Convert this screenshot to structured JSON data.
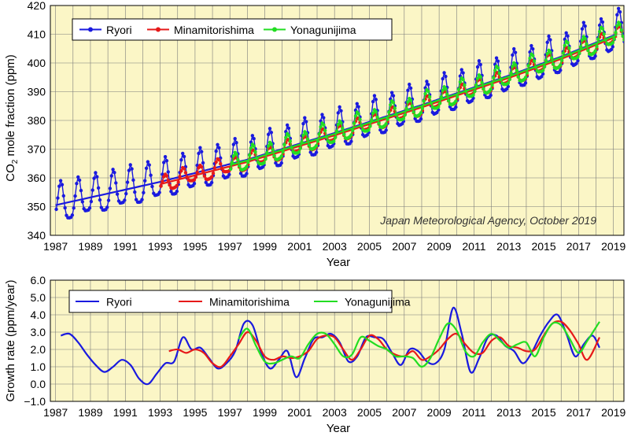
{
  "chart_data": [
    {
      "type": "line",
      "ylabel_main": "CO",
      "ylabel_sub": "2",
      "ylabel_rest": " mole fraction (ppm)",
      "xlabel": "Year",
      "note": "Japan Meteorological Agency, October 2019",
      "xlim": [
        1986.7,
        2019.6
      ],
      "ylim": [
        340,
        420
      ],
      "x_tick_labels": [
        "1987",
        "1989",
        "1991",
        "1993",
        "1995",
        "1997",
        "1999",
        "2001",
        "2003",
        "2005",
        "2007",
        "2009",
        "2011",
        "2013",
        "2015",
        "2017",
        "2019"
      ],
      "y_tick_labels": [
        "340",
        "350",
        "360",
        "370",
        "380",
        "390",
        "400",
        "410",
        "420"
      ],
      "grid": true,
      "legend_position": "top-left",
      "series": [
        {
          "name": "Ryori",
          "color": "#1a1adf",
          "start": 1987.0,
          "end": 2019.7,
          "monthly": true,
          "trend_base": 350.5,
          "trend_rate": [
            [
              1987,
              1.2
            ],
            [
              1992,
              1.4
            ],
            [
              1997,
              1.7
            ],
            [
              2002,
              1.9
            ],
            [
              2007,
              2.0
            ],
            [
              2012,
              2.1
            ],
            [
              2017,
              2.3
            ]
          ],
          "amplitude": 6.5,
          "trend_line": true
        },
        {
          "name": "Minamitorishima",
          "color": "#e61919",
          "start": 1993.0,
          "end": 2019.7,
          "monthly": true,
          "trend_base": 357.8,
          "amplitude": 2.7,
          "trend_line": true
        },
        {
          "name": "Yonagunijima",
          "color": "#22dd22",
          "start": 1997.0,
          "end": 2019.7,
          "monthly": true,
          "trend_base": 364.5,
          "amplitude": 3.6,
          "trend_line": true
        }
      ]
    },
    {
      "type": "line",
      "ylabel": "Growth rate (ppm/year)",
      "xlabel": "Year",
      "xlim": [
        1986.7,
        2019.6
      ],
      "ylim": [
        -1.0,
        6.0
      ],
      "x_tick_labels": [
        "1987",
        "1989",
        "1991",
        "1993",
        "1995",
        "1997",
        "1999",
        "2001",
        "2003",
        "2005",
        "2007",
        "2009",
        "2011",
        "2013",
        "2015",
        "2017",
        "2019"
      ],
      "y_tick_labels": [
        "−1.0",
        "0.0",
        "1.0",
        "2.0",
        "3.0",
        "4.0",
        "5.0",
        "6.0"
      ],
      "grid": true,
      "legend_position": "top",
      "series": [
        {
          "name": "Ryori",
          "color": "#1a1adf",
          "x": [
            1987.3,
            1987.8,
            1988.3,
            1988.8,
            1989.3,
            1989.8,
            1990.3,
            1990.8,
            1991.3,
            1991.8,
            1992.3,
            1992.8,
            1993.3,
            1993.8,
            1994.3,
            1994.8,
            1995.3,
            1995.8,
            1996.3,
            1996.8,
            1997.3,
            1997.8,
            1998.3,
            1998.8,
            1999.3,
            1999.8,
            2000.3,
            2000.8,
            2001.3,
            2001.8,
            2002.3,
            2002.8,
            2003.3,
            2003.8,
            2004.3,
            2004.8,
            2005.3,
            2005.8,
            2006.3,
            2006.8,
            2007.3,
            2007.8,
            2008.3,
            2008.8,
            2009.3,
            2009.8,
            2010.3,
            2010.8,
            2011.3,
            2011.8,
            2012.3,
            2012.8,
            2013.3,
            2013.8,
            2014.3,
            2014.8,
            2015.3,
            2015.8,
            2016.3,
            2016.8,
            2017.3,
            2017.8,
            2018.2
          ],
          "y": [
            2.8,
            2.9,
            2.4,
            1.7,
            1.1,
            0.7,
            1.0,
            1.4,
            1.1,
            0.3,
            0.0,
            0.6,
            1.2,
            1.3,
            2.7,
            2.0,
            2.1,
            1.5,
            0.9,
            1.2,
            1.9,
            3.5,
            3.4,
            1.8,
            0.9,
            1.4,
            1.9,
            0.4,
            1.5,
            2.6,
            2.7,
            2.9,
            2.4,
            1.3,
            1.6,
            2.7,
            2.7,
            2.6,
            1.8,
            1.1,
            2.0,
            1.9,
            1.3,
            1.2,
            2.0,
            4.4,
            2.9,
            0.7,
            1.5,
            2.7,
            2.8,
            2.2,
            1.9,
            1.2,
            1.8,
            2.8,
            3.6,
            4.0,
            2.9,
            1.6,
            2.3,
            2.8,
            2.1
          ]
        },
        {
          "name": "Minamitorishima",
          "color": "#e61919",
          "x": [
            1993.5,
            1994.0,
            1994.5,
            1995.0,
            1995.5,
            1996.0,
            1996.5,
            1997.0,
            1997.5,
            1998.0,
            1998.5,
            1999.0,
            1999.5,
            2000.0,
            2000.5,
            2001.0,
            2001.5,
            2002.0,
            2002.5,
            2003.0,
            2003.5,
            2004.0,
            2004.5,
            2005.0,
            2005.5,
            2006.0,
            2006.5,
            2007.0,
            2007.5,
            2008.0,
            2008.5,
            2009.0,
            2009.5,
            2010.0,
            2010.5,
            2011.0,
            2011.5,
            2012.0,
            2012.5,
            2013.0,
            2013.5,
            2014.0,
            2014.5,
            2015.0,
            2015.5,
            2016.0,
            2016.5,
            2017.0,
            2017.5,
            2018.2
          ],
          "y": [
            1.9,
            2.0,
            1.8,
            2.0,
            1.8,
            1.2,
            1.0,
            1.6,
            2.3,
            3.0,
            2.5,
            1.6,
            1.4,
            1.6,
            1.5,
            1.6,
            1.9,
            2.6,
            2.8,
            2.7,
            2.0,
            1.4,
            2.0,
            2.8,
            2.6,
            2.0,
            1.7,
            1.6,
            1.9,
            1.4,
            1.6,
            2.0,
            2.6,
            2.9,
            2.3,
            1.8,
            1.8,
            2.5,
            2.7,
            2.2,
            2.1,
            1.9,
            2.0,
            2.8,
            3.5,
            3.6,
            3.1,
            2.3,
            1.4,
            2.7
          ]
        },
        {
          "name": "Yonagunijima",
          "color": "#22dd22",
          "x": [
            1997.5,
            1998.0,
            1998.5,
            1999.0,
            1999.5,
            2000.0,
            2000.5,
            2001.0,
            2001.5,
            2002.0,
            2002.5,
            2003.0,
            2003.5,
            2004.0,
            2004.5,
            2005.0,
            2005.5,
            2006.0,
            2006.5,
            2007.0,
            2007.5,
            2008.0,
            2008.5,
            2009.0,
            2009.5,
            2010.0,
            2010.5,
            2011.0,
            2011.5,
            2012.0,
            2012.5,
            2013.0,
            2013.5,
            2014.0,
            2014.5,
            2015.0,
            2015.5,
            2016.0,
            2016.5,
            2017.0,
            2017.5,
            2018.2
          ],
          "y": [
            2.6,
            3.2,
            2.2,
            1.3,
            1.2,
            1.4,
            1.6,
            1.5,
            2.3,
            2.9,
            2.9,
            2.3,
            1.6,
            1.7,
            2.7,
            2.5,
            2.2,
            2.0,
            1.6,
            1.6,
            1.5,
            1.0,
            1.5,
            2.6,
            3.5,
            3.1,
            1.9,
            1.6,
            2.4,
            2.9,
            2.5,
            2.1,
            2.3,
            2.4,
            1.6,
            2.7,
            3.5,
            3.4,
            2.6,
            1.8,
            2.5,
            3.6
          ]
        }
      ]
    }
  ]
}
